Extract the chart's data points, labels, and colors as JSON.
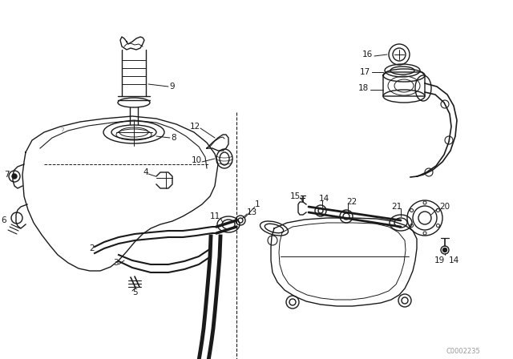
{
  "bg_color": "#ffffff",
  "line_color": "#1a1a1a",
  "watermark": "C0002235",
  "label_fontsize": 7.5,
  "lw": 1.0
}
